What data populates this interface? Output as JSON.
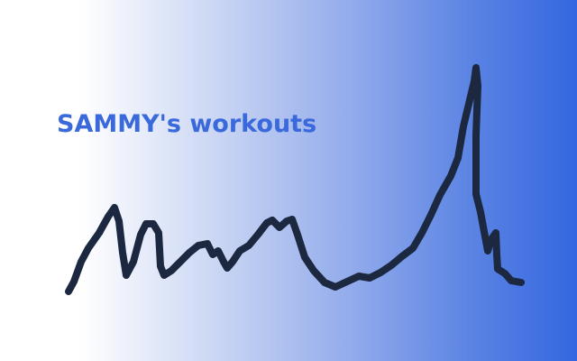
{
  "title": "SAMMY's workouts"
}
